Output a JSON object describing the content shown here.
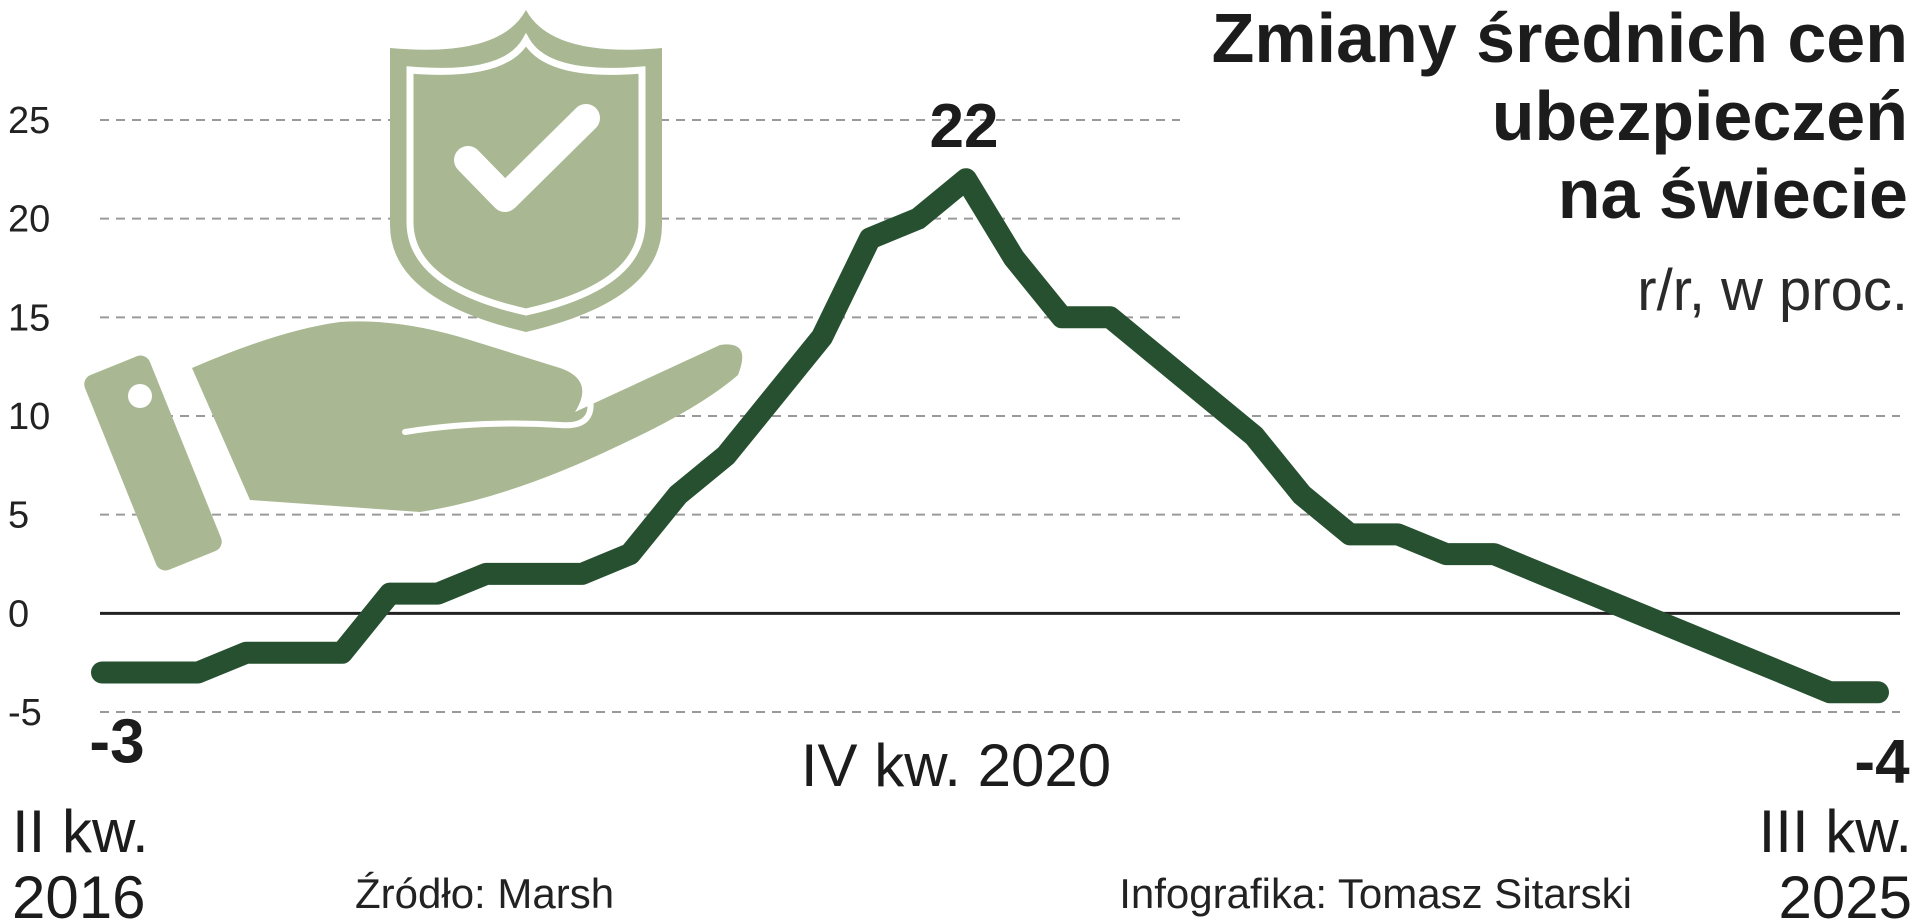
{
  "chart_data": {
    "type": "line",
    "title_lines": [
      "Zmiany średnich cen",
      "ubezpieczeń",
      "na świecie"
    ],
    "subtitle": "r/r, w proc.",
    "ylim": [
      -5,
      25
    ],
    "yticks": [
      "25",
      "20",
      "15",
      "10",
      "5",
      "0",
      "-5"
    ],
    "ytick_values": [
      25,
      20,
      15,
      10,
      5,
      0,
      -5
    ],
    "grid": true,
    "x_start_label": [
      "II kw.",
      "2016"
    ],
    "x_end_label": [
      "III kw.",
      "2025"
    ],
    "series": [
      {
        "values": [
          -3,
          -3,
          -3,
          -2,
          -2,
          -2,
          1,
          1,
          2,
          2,
          2,
          3,
          6,
          8,
          11,
          14,
          19,
          20,
          22,
          18,
          15,
          15,
          13,
          11,
          9,
          6,
          4,
          4,
          3,
          3,
          2,
          1,
          0,
          -1,
          -2,
          -3,
          -4,
          -4
        ]
      }
    ],
    "annotations": [
      {
        "index": 0,
        "label": "-3"
      },
      {
        "index": 18,
        "label": "22",
        "period": "IV kw. 2020"
      },
      {
        "index": 37,
        "label": "-4"
      }
    ],
    "colors": {
      "line": "#26502f",
      "icon": "#a9b892",
      "grid": "#9a9a9a",
      "zero_line": "#222222"
    },
    "icon": "shield-hand-icon"
  },
  "footer": {
    "source": "Źródło: Marsh",
    "credit": "Infografika: Tomasz Sitarski"
  }
}
